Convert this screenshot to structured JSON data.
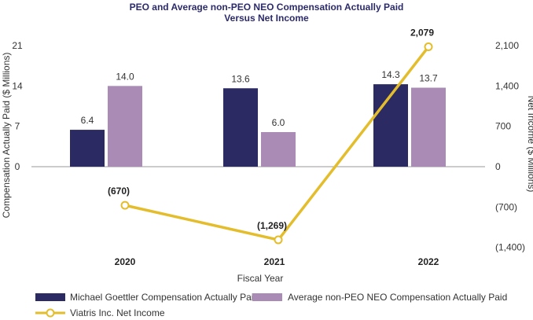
{
  "chart_data": {
    "type": "bar",
    "title_line1": "PEO and Average non-PEO NEO Compensation Actually Paid",
    "title_line2": "Versus Net Income",
    "categories": [
      "2020",
      "2021",
      "2022"
    ],
    "xlabel": "Fiscal Year",
    "ylabel_left": "Compensation Actually Paid ($ Millions)",
    "ylabel_right": "Net Income ($ Millions)",
    "left_axis": {
      "ylim": [
        0,
        21
      ],
      "ticks": [
        0,
        7,
        14,
        21
      ],
      "tick_labels": [
        "0",
        "7",
        "14",
        "21"
      ]
    },
    "right_axis": {
      "ylim": [
        -1400,
        2100
      ],
      "ticks": [
        -1400,
        -700,
        0,
        700,
        1400,
        2100
      ],
      "tick_labels": [
        "(1,400)",
        "(700)",
        "0",
        "700",
        "1,400",
        "2,100"
      ]
    },
    "series": [
      {
        "name": "Michael Goettler Compensation Actually Paid",
        "type": "bar",
        "axis": "left",
        "color": "#2b2a63",
        "values": [
          6.4,
          13.6,
          14.3
        ],
        "labels": [
          "6.4",
          "13.6",
          "14.3"
        ]
      },
      {
        "name": "Average non-PEO NEO Compensation Actually Paid",
        "type": "bar",
        "axis": "left",
        "color": "#a98bb6",
        "values": [
          14.0,
          6.0,
          13.7
        ],
        "labels": [
          "14.0",
          "6.0",
          "13.7"
        ]
      },
      {
        "name": "Viatris Inc. Net Income",
        "type": "line",
        "axis": "right",
        "color": "#e3bd2c",
        "values": [
          -670,
          -1269,
          2079
        ],
        "labels": [
          "(670)",
          "(1,269)",
          "2,079"
        ]
      }
    ],
    "grid": false,
    "legend_position": "bottom"
  }
}
